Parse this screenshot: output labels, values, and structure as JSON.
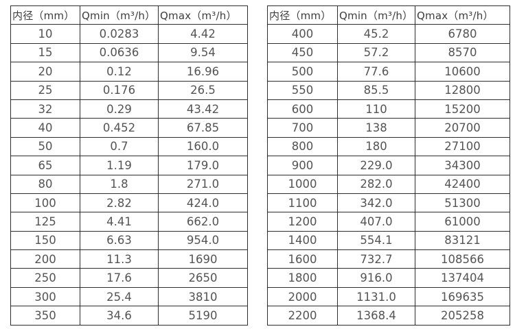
{
  "colors": {
    "background": "#ffffff",
    "table_border": "#2b2b2b",
    "header_text": "#3d3d3d",
    "cell_text": "#545454"
  },
  "chart_data": [
    {
      "type": "table",
      "columns": [
        "内径（mm）",
        "Qmin（m³/h）",
        "Qmax（m³/h）"
      ],
      "rows": [
        [
          "10",
          "0.0283",
          "4.42"
        ],
        [
          "15",
          "0.0636",
          "9.54"
        ],
        [
          "20",
          "0.12",
          "16.96"
        ],
        [
          "25",
          "0.176",
          "26.5"
        ],
        [
          "32",
          "0.29",
          "43.42"
        ],
        [
          "40",
          "0.452",
          "67.85"
        ],
        [
          "50",
          "0.7",
          "160.0"
        ],
        [
          "65",
          "1.19",
          "179.0"
        ],
        [
          "80",
          "1.8",
          "271.0"
        ],
        [
          "100",
          "2.82",
          "424.0"
        ],
        [
          "125",
          "4.41",
          "662.0"
        ],
        [
          "150",
          "6.63",
          "954.0"
        ],
        [
          "200",
          "11.3",
          "1690"
        ],
        [
          "250",
          "17.6",
          "2650"
        ],
        [
          "300",
          "25.4",
          "3810"
        ],
        [
          "350",
          "34.6",
          "5190"
        ]
      ]
    },
    {
      "type": "table",
      "columns": [
        "内径（mm）",
        "Qmin（m³/h）",
        "Qmax（m³/h）"
      ],
      "rows": [
        [
          "400",
          "45.2",
          "6780"
        ],
        [
          "450",
          "57.2",
          "8570"
        ],
        [
          "500",
          "77.6",
          "10600"
        ],
        [
          "550",
          "85.5",
          "12800"
        ],
        [
          "600",
          "110",
          "15200"
        ],
        [
          "700",
          "138",
          "20700"
        ],
        [
          "800",
          "180",
          "27100"
        ],
        [
          "900",
          "229.0",
          "34300"
        ],
        [
          "1000",
          "282.0",
          "42400"
        ],
        [
          "1100",
          "342.0",
          "51300"
        ],
        [
          "1200",
          "407.0",
          "61000"
        ],
        [
          "1400",
          "554.1",
          "83121"
        ],
        [
          "1600",
          "732.7",
          "108566"
        ],
        [
          "1800",
          "916.0",
          "137404"
        ],
        [
          "2000",
          "1131.0",
          "169635"
        ],
        [
          "2200",
          "1368.4",
          "205258"
        ]
      ]
    }
  ]
}
